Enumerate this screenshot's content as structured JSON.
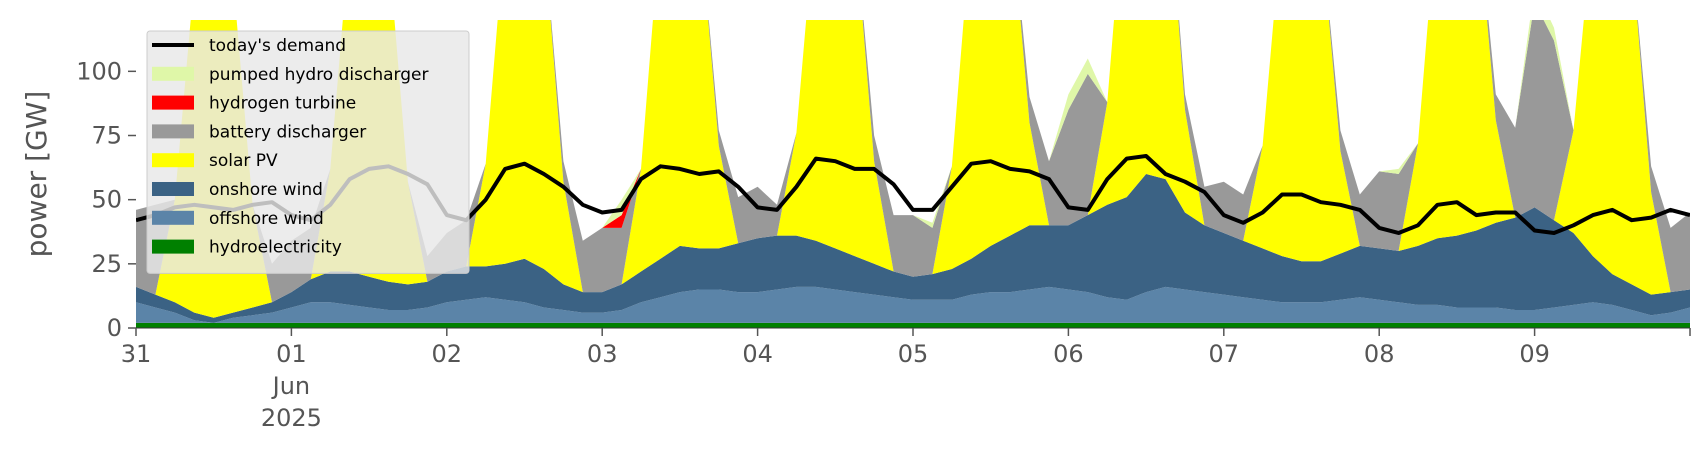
{
  "chart_data": {
    "type": "area",
    "title": "",
    "xlabel": "",
    "ylabel": "power [GW]",
    "ylim": [
      0,
      120
    ],
    "xlim": [
      "2025-05-31T00:00",
      "2025-06-10T00:00"
    ],
    "yticks": [
      0,
      25,
      50,
      75,
      100
    ],
    "xticks": [
      {
        "x": "2025-05-31T00:00",
        "label": "31"
      },
      {
        "x": "2025-06-01T00:00",
        "label": "01",
        "sub": [
          "Jun",
          "2025"
        ]
      },
      {
        "x": "2025-06-02T00:00",
        "label": "02"
      },
      {
        "x": "2025-06-03T00:00",
        "label": "03"
      },
      {
        "x": "2025-06-04T00:00",
        "label": "04"
      },
      {
        "x": "2025-06-05T00:00",
        "label": "05"
      },
      {
        "x": "2025-06-06T00:00",
        "label": "06"
      },
      {
        "x": "2025-06-07T00:00",
        "label": "07"
      },
      {
        "x": "2025-06-08T00:00",
        "label": "08"
      },
      {
        "x": "2025-06-09T00:00",
        "label": "09"
      },
      {
        "x": "2025-06-10T00:00",
        "label": ""
      }
    ],
    "grid": false,
    "legend_position": "upper-left",
    "x": [
      "2025-05-31T00:00",
      "2025-05-31T03:00",
      "2025-05-31T06:00",
      "2025-05-31T09:00",
      "2025-05-31T12:00",
      "2025-05-31T15:00",
      "2025-05-31T18:00",
      "2025-05-31T21:00",
      "2025-06-01T00:00",
      "2025-06-01T03:00",
      "2025-06-01T06:00",
      "2025-06-01T09:00",
      "2025-06-01T12:00",
      "2025-06-01T15:00",
      "2025-06-01T18:00",
      "2025-06-01T21:00",
      "2025-06-02T00:00",
      "2025-06-02T03:00",
      "2025-06-02T06:00",
      "2025-06-02T09:00",
      "2025-06-02T12:00",
      "2025-06-02T15:00",
      "2025-06-02T18:00",
      "2025-06-02T21:00",
      "2025-06-03T00:00",
      "2025-06-03T03:00",
      "2025-06-03T06:00",
      "2025-06-03T09:00",
      "2025-06-03T12:00",
      "2025-06-03T15:00",
      "2025-06-03T18:00",
      "2025-06-03T21:00",
      "2025-06-04T00:00",
      "2025-06-04T03:00",
      "2025-06-04T06:00",
      "2025-06-04T09:00",
      "2025-06-04T12:00",
      "2025-06-04T15:00",
      "2025-06-04T18:00",
      "2025-06-04T21:00",
      "2025-06-05T00:00",
      "2025-06-05T03:00",
      "2025-06-05T06:00",
      "2025-06-05T09:00",
      "2025-06-05T12:00",
      "2025-06-05T15:00",
      "2025-06-05T18:00",
      "2025-06-05T21:00",
      "2025-06-06T00:00",
      "2025-06-06T03:00",
      "2025-06-06T06:00",
      "2025-06-06T09:00",
      "2025-06-06T12:00",
      "2025-06-06T15:00",
      "2025-06-06T18:00",
      "2025-06-06T21:00",
      "2025-06-07T00:00",
      "2025-06-07T03:00",
      "2025-06-07T06:00",
      "2025-06-07T09:00",
      "2025-06-07T12:00",
      "2025-06-07T15:00",
      "2025-06-07T18:00",
      "2025-06-07T21:00",
      "2025-06-08T00:00",
      "2025-06-08T03:00",
      "2025-06-08T06:00",
      "2025-06-08T09:00",
      "2025-06-08T12:00",
      "2025-06-08T15:00",
      "2025-06-08T18:00",
      "2025-06-08T21:00",
      "2025-06-09T00:00",
      "2025-06-09T03:00",
      "2025-06-09T06:00",
      "2025-06-09T09:00",
      "2025-06-09T12:00",
      "2025-06-09T15:00",
      "2025-06-09T18:00",
      "2025-06-09T21:00",
      "2025-06-10T00:00"
    ],
    "series": [
      {
        "name": "hydroelectricity",
        "color": "#008000",
        "kind": "area",
        "values": [
          2,
          2,
          2,
          2,
          2,
          2,
          2,
          2,
          2,
          2,
          2,
          2,
          2,
          2,
          2,
          2,
          2,
          2,
          2,
          2,
          2,
          2,
          2,
          2,
          2,
          2,
          2,
          2,
          2,
          2,
          2,
          2,
          2,
          2,
          2,
          2,
          2,
          2,
          2,
          2,
          2,
          2,
          2,
          2,
          2,
          2,
          2,
          2,
          2,
          2,
          2,
          2,
          2,
          2,
          2,
          2,
          2,
          2,
          2,
          2,
          2,
          2,
          2,
          2,
          2,
          2,
          2,
          2,
          2,
          2,
          2,
          2,
          2,
          2,
          2,
          2,
          2,
          2,
          2,
          2,
          2
        ]
      },
      {
        "name": "offshore wind",
        "color": "#5b84a8",
        "kind": "area",
        "values": [
          8,
          6,
          4,
          1,
          0,
          2,
          3,
          4,
          6,
          8,
          8,
          7,
          6,
          5,
          5,
          6,
          8,
          9,
          10,
          9,
          8,
          6,
          5,
          4,
          4,
          5,
          8,
          10,
          12,
          13,
          13,
          12,
          12,
          13,
          14,
          14,
          13,
          12,
          11,
          10,
          9,
          9,
          9,
          11,
          12,
          12,
          13,
          14,
          13,
          12,
          10,
          9,
          12,
          14,
          13,
          12,
          11,
          10,
          9,
          8,
          8,
          8,
          9,
          10,
          9,
          8,
          7,
          7,
          6,
          6,
          6,
          5,
          5,
          6,
          7,
          8,
          7,
          5,
          3,
          4,
          6
        ]
      },
      {
        "name": "onshore wind",
        "color": "#3b6284",
        "kind": "area",
        "values": [
          6,
          5,
          4,
          3,
          2,
          2,
          3,
          4,
          6,
          9,
          12,
          13,
          12,
          11,
          10,
          10,
          12,
          13,
          12,
          14,
          17,
          15,
          10,
          8,
          8,
          10,
          12,
          15,
          18,
          16,
          16,
          19,
          21,
          21,
          20,
          18,
          16,
          14,
          12,
          10,
          9,
          10,
          12,
          14,
          18,
          22,
          25,
          24,
          25,
          30,
          36,
          40,
          46,
          42,
          30,
          26,
          24,
          22,
          20,
          18,
          16,
          16,
          18,
          20,
          20,
          20,
          23,
          26,
          28,
          30,
          33,
          36,
          40,
          34,
          28,
          18,
          12,
          10,
          8,
          8,
          7
        ]
      },
      {
        "name": "solar PV",
        "color": "#ffff00",
        "kind": "area",
        "values": [
          0,
          0,
          40,
          130,
          130,
          130,
          40,
          0,
          0,
          0,
          40,
          130,
          130,
          130,
          40,
          0,
          0,
          0,
          40,
          130,
          130,
          130,
          40,
          0,
          0,
          0,
          40,
          130,
          130,
          130,
          40,
          0,
          0,
          0,
          40,
          130,
          130,
          130,
          40,
          0,
          0,
          0,
          40,
          130,
          130,
          130,
          40,
          0,
          0,
          0,
          40,
          130,
          130,
          130,
          40,
          0,
          0,
          0,
          40,
          130,
          130,
          130,
          40,
          0,
          0,
          0,
          40,
          130,
          130,
          130,
          40,
          0,
          0,
          0,
          40,
          130,
          130,
          130,
          40,
          0,
          0
        ]
      },
      {
        "name": "battery discharger",
        "color": "#999999",
        "kind": "area",
        "values": [
          30,
          35,
          0,
          0,
          0,
          0,
          0,
          15,
          20,
          20,
          0,
          0,
          0,
          0,
          0,
          10,
          15,
          18,
          0,
          0,
          0,
          0,
          8,
          20,
          25,
          22,
          0,
          0,
          0,
          0,
          6,
          18,
          20,
          12,
          0,
          0,
          0,
          0,
          10,
          22,
          24,
          18,
          0,
          0,
          0,
          0,
          10,
          25,
          45,
          55,
          0,
          0,
          0,
          0,
          6,
          15,
          20,
          18,
          0,
          0,
          0,
          0,
          8,
          20,
          30,
          30,
          0,
          0,
          0,
          0,
          10,
          35,
          80,
          70,
          0,
          0,
          0,
          0,
          10,
          25,
          30
        ]
      },
      {
        "name": "hydrogen turbine",
        "color": "#ff0000",
        "kind": "area",
        "values": [
          0,
          0,
          0,
          0,
          0,
          0,
          0,
          0,
          0,
          0,
          0,
          0,
          0,
          0,
          0,
          0,
          0,
          0,
          0,
          0,
          0,
          0,
          0,
          0,
          0,
          5,
          0,
          0,
          0,
          0,
          0,
          0,
          0,
          0,
          0,
          0,
          0,
          0,
          0,
          0,
          0,
          0,
          0,
          0,
          0,
          0,
          0,
          0,
          0,
          0,
          0,
          0,
          0,
          0,
          0,
          0,
          0,
          0,
          0,
          0,
          0,
          0,
          0,
          0,
          0,
          0,
          0,
          0,
          0,
          0,
          0,
          0,
          0,
          0,
          0,
          0,
          0,
          0,
          0,
          0,
          0
        ]
      },
      {
        "name": "pumped hydro discharger",
        "color": "#dff7a8",
        "kind": "area",
        "values": [
          0,
          0,
          0,
          0,
          0,
          0,
          0,
          0,
          0,
          0,
          0,
          0,
          0,
          0,
          0,
          0,
          0,
          0,
          0,
          0,
          0,
          0,
          0,
          0,
          0,
          6,
          0,
          0,
          0,
          0,
          0,
          0,
          0,
          0,
          0,
          0,
          0,
          0,
          0,
          0,
          0,
          2,
          0,
          0,
          0,
          0,
          0,
          0,
          6,
          6,
          0,
          0,
          0,
          0,
          0,
          0,
          0,
          0,
          0,
          0,
          0,
          0,
          0,
          0,
          0,
          2,
          0,
          0,
          0,
          0,
          0,
          0,
          6,
          5,
          0,
          0,
          0,
          0,
          0,
          0,
          0
        ]
      },
      {
        "name": "today's demand",
        "color": "#000000",
        "kind": "line",
        "values": [
          42,
          44,
          47,
          48,
          47,
          46,
          48,
          49,
          44,
          42,
          48,
          58,
          62,
          63,
          60,
          56,
          44,
          42,
          50,
          62,
          64,
          60,
          55,
          48,
          45,
          46,
          58,
          63,
          62,
          60,
          61,
          55,
          47,
          46,
          55,
          66,
          65,
          62,
          62,
          56,
          46,
          46,
          55,
          64,
          65,
          62,
          61,
          58,
          47,
          46,
          58,
          66,
          67,
          60,
          57,
          53,
          44,
          41,
          45,
          52,
          52,
          49,
          48,
          46,
          39,
          37,
          40,
          48,
          49,
          44,
          45,
          45,
          38,
          37,
          40,
          44,
          46,
          42,
          43,
          46,
          44
        ]
      }
    ]
  },
  "legend": {
    "items": [
      {
        "label": "today's demand",
        "color": "#000000",
        "kind": "line"
      },
      {
        "label": "pumped hydro discharger",
        "color": "#dff7a8",
        "kind": "patch"
      },
      {
        "label": "hydrogen turbine",
        "color": "#ff0000",
        "kind": "patch"
      },
      {
        "label": "battery discharger",
        "color": "#999999",
        "kind": "patch"
      },
      {
        "label": "solar PV",
        "color": "#ffff00",
        "kind": "patch"
      },
      {
        "label": "onshore wind",
        "color": "#3b6284",
        "kind": "patch"
      },
      {
        "label": "offshore wind",
        "color": "#5b84a8",
        "kind": "patch"
      },
      {
        "label": "hydroelectricity",
        "color": "#008000",
        "kind": "patch"
      }
    ]
  }
}
